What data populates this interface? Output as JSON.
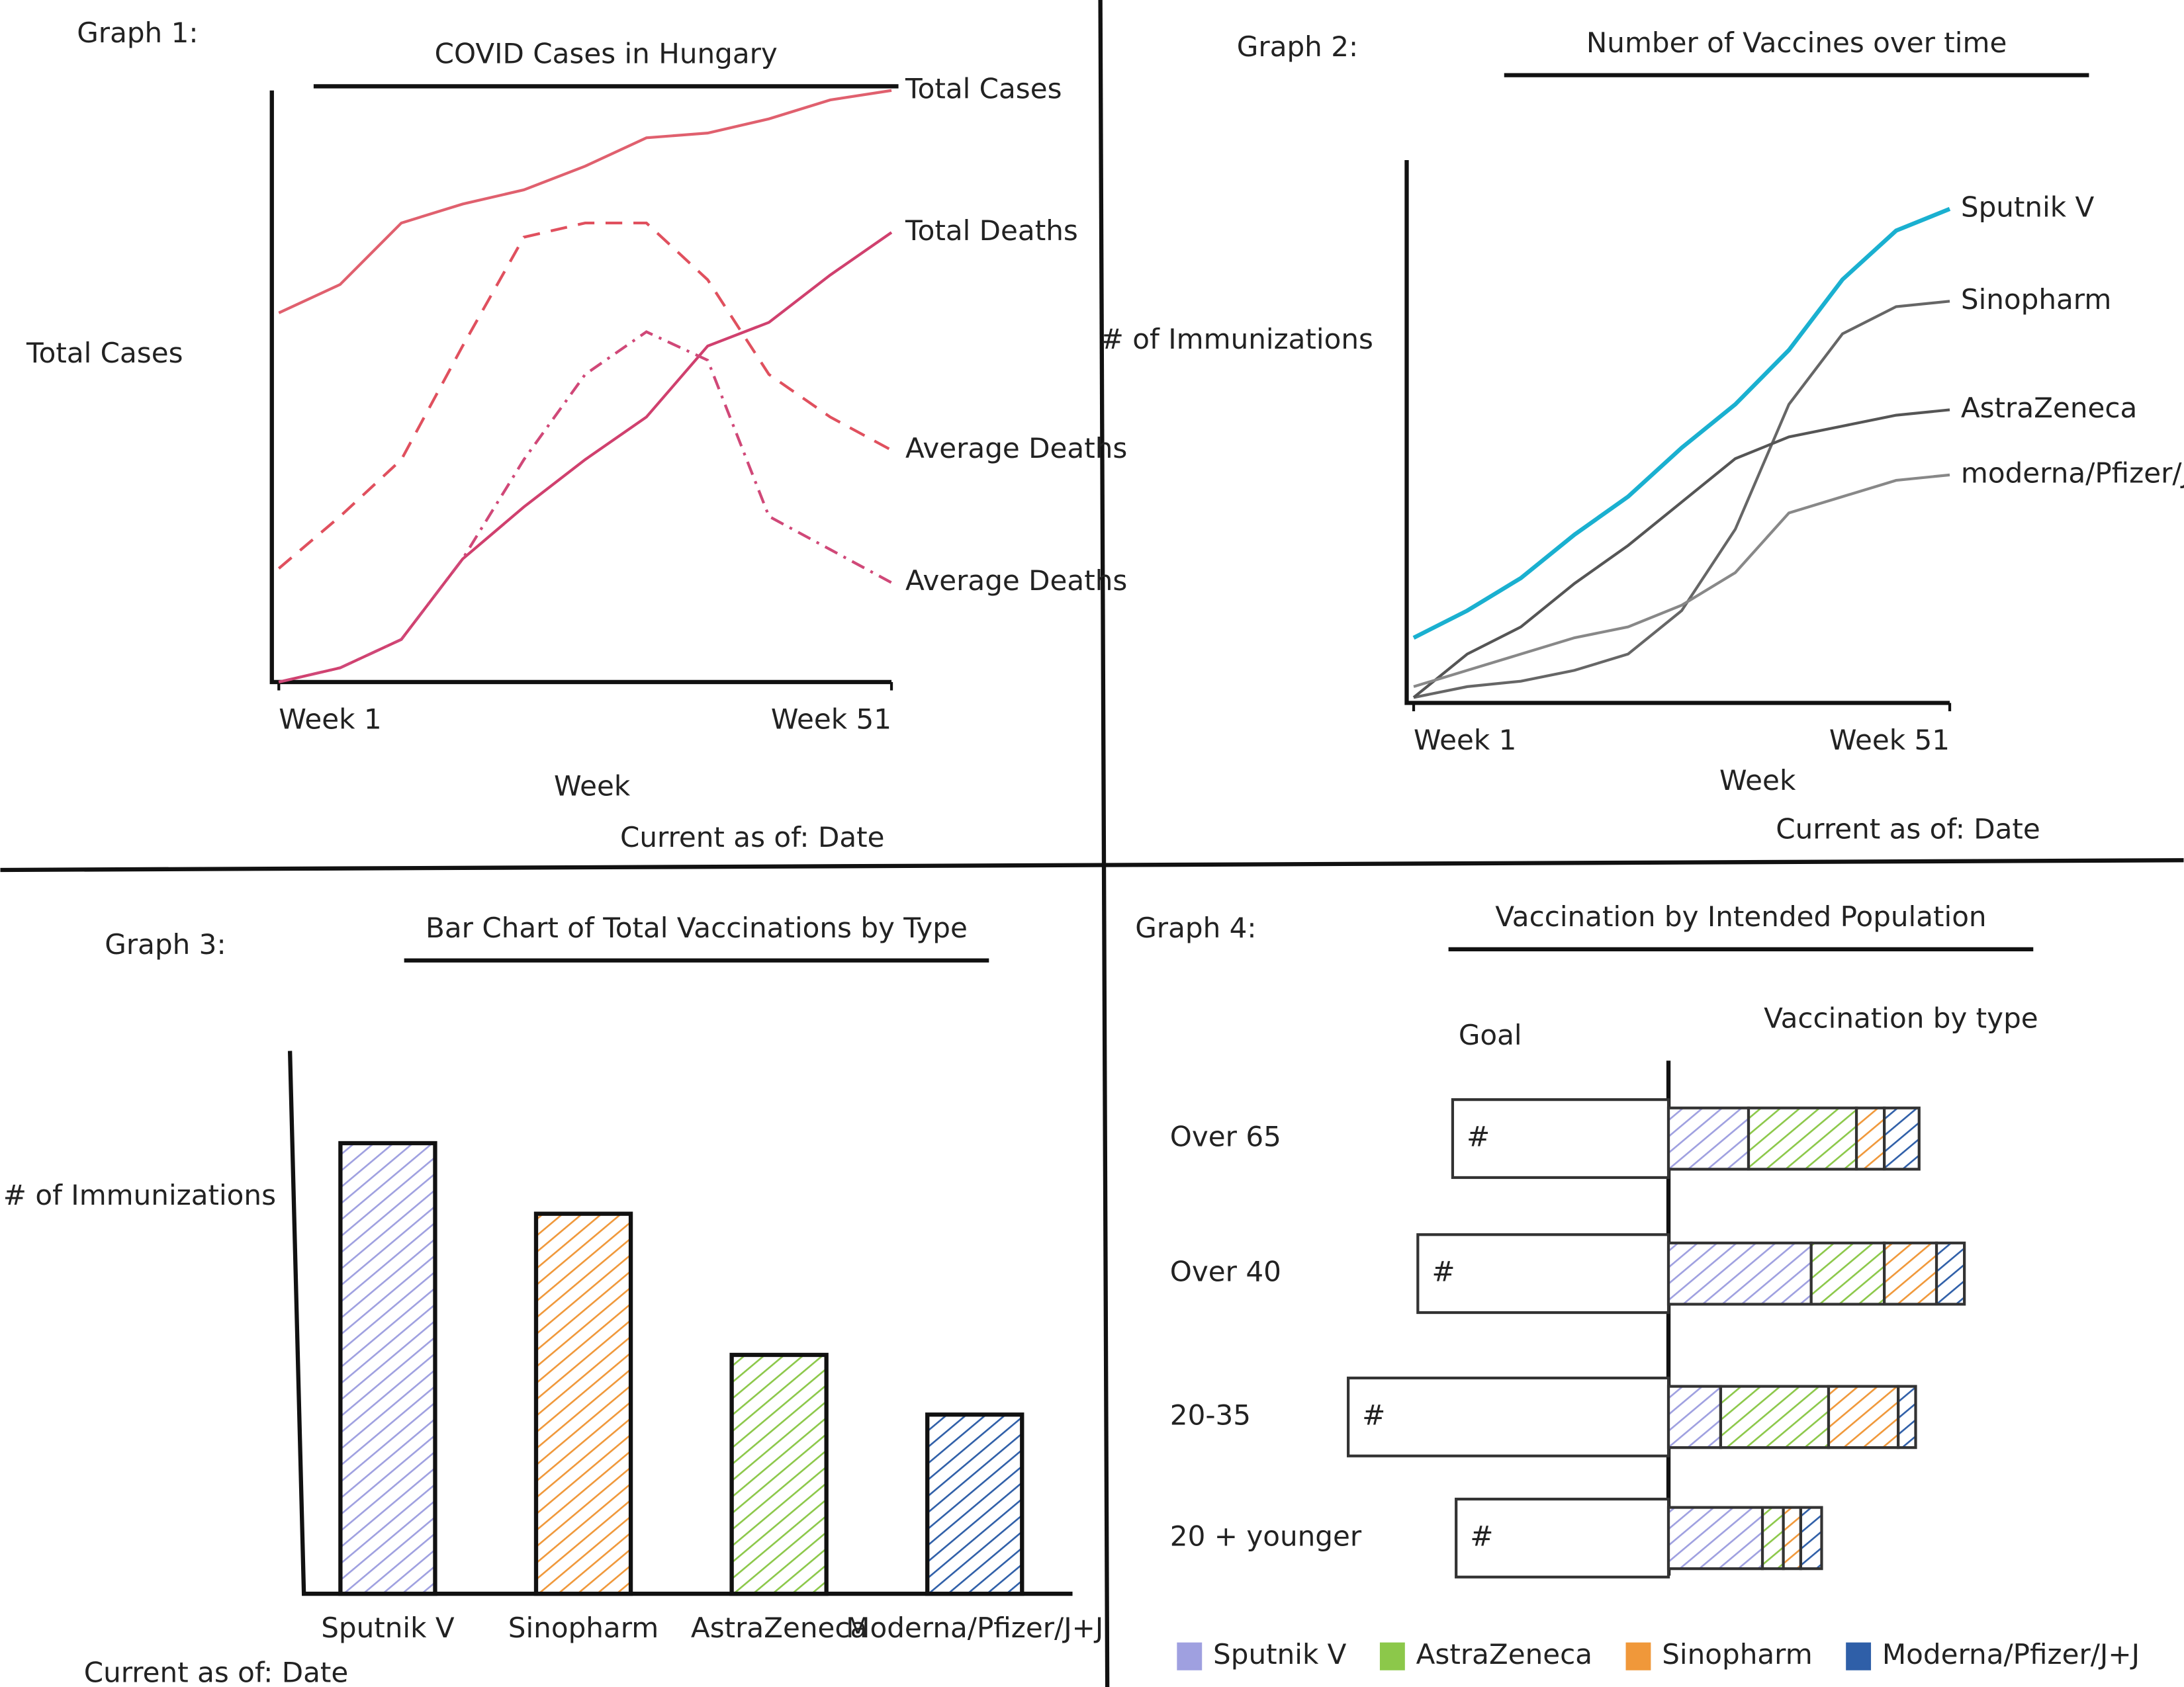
{
  "chart_data": [
    {
      "type": "line",
      "label": "Graph 1:",
      "title": "COVID Cases in Hungary",
      "ylabel": "Total Cases",
      "xlabel": "Week",
      "footnote": "Current as of: Date",
      "x": [
        1,
        6,
        11,
        16,
        21,
        26,
        31,
        36,
        41,
        46,
        51
      ],
      "xlim": [
        1,
        51
      ],
      "xticks": [
        {
          "value": 1,
          "label": "Week 1"
        },
        {
          "value": 51,
          "label": "Week 51"
        }
      ],
      "ylim": [
        0,
        125
      ],
      "series": [
        {
          "name": "Total Cases",
          "color": "#e0606e",
          "dash": "solid",
          "values": [
            78,
            84,
            97,
            101,
            104,
            109,
            115,
            116,
            119,
            123,
            125
          ]
        },
        {
          "name": "Total Deaths",
          "color": "#d0406e",
          "dash": "solid",
          "values": [
            0,
            3,
            9,
            26,
            37,
            47,
            56,
            71,
            76,
            86,
            95
          ]
        },
        {
          "name": "Average Deaths",
          "color": "#e0505e",
          "dash": "dashed",
          "values": [
            24,
            35,
            47,
            71,
            94,
            97,
            97,
            85,
            65,
            56,
            49
          ]
        },
        {
          "name": "Average Deaths",
          "color": "#d04878",
          "dash": "dashdot",
          "values": [
            0,
            3,
            9,
            26,
            47,
            65,
            74,
            68,
            35,
            28,
            21
          ]
        }
      ]
    },
    {
      "type": "line",
      "label": "Graph 2:",
      "title": "Number of Vaccines over time",
      "ylabel": "# of Immunizations",
      "xlabel": "Week",
      "footnote": "Current as of: Date",
      "x": [
        1,
        6,
        11,
        16,
        21,
        26,
        31,
        36,
        41,
        46,
        51
      ],
      "xlim": [
        1,
        51
      ],
      "xticks": [
        {
          "value": 1,
          "label": "Week 1"
        },
        {
          "value": 51,
          "label": "Week 51"
        }
      ],
      "ylim": [
        0,
        100
      ],
      "series": [
        {
          "name": "Sputnik V",
          "color": "#1ab0d0",
          "dash": "solid",
          "values": [
            12,
            17,
            23,
            31,
            38,
            47,
            55,
            65,
            78,
            87,
            91
          ]
        },
        {
          "name": "Sinopharm",
          "color": "#666666",
          "dash": "solid",
          "values": [
            1,
            3,
            4,
            6,
            9,
            17,
            32,
            55,
            68,
            73,
            74
          ]
        },
        {
          "name": "AstraZeneca",
          "color": "#555555",
          "dash": "solid",
          "values": [
            1,
            9,
            14,
            22,
            29,
            37,
            45,
            49,
            51,
            53,
            54
          ]
        },
        {
          "name": "moderna/Pfizer/J+J",
          "color": "#888888",
          "dash": "solid",
          "values": [
            3,
            6,
            9,
            12,
            14,
            18,
            24,
            35,
            38,
            41,
            42
          ]
        }
      ]
    },
    {
      "type": "bar",
      "label": "Graph 3:",
      "title": "Bar Chart of Total Vaccinations by Type",
      "ylabel": "# of Immunizations",
      "footnote": "Current as of: Date",
      "categories": [
        "Sputnik V",
        "Sinopharm",
        "AstraZeneca",
        "Moderna/Pfizer/J+J"
      ],
      "values": [
        83,
        70,
        44,
        33
      ],
      "colors": [
        "#9fa0e0",
        "#f0983a",
        "#8cc84a",
        "#2f5fa8"
      ],
      "ylim": [
        0,
        100
      ]
    },
    {
      "type": "stacked-hbar",
      "label": "Graph 4:",
      "title": "Vaccination by Intended Population",
      "goal_title": "Goal",
      "vaccination_title": "Vaccination by type",
      "goal_marker": "#",
      "categories": [
        "Over 65",
        "Over 40",
        "20-35",
        "20 + younger"
      ],
      "goal": [
        62,
        72,
        92,
        61
      ],
      "xlim": [
        0,
        100
      ],
      "series": [
        {
          "name": "Sputnik V",
          "color": "#9fa0e0",
          "values": [
            23,
            41,
            15,
            27
          ]
        },
        {
          "name": "AstraZeneca",
          "color": "#8cc84a",
          "values": [
            31,
            21,
            31,
            6
          ]
        },
        {
          "name": "Sinopharm",
          "color": "#f0983a",
          "values": [
            8,
            15,
            20,
            5
          ]
        },
        {
          "name": "Moderna/Pfizer/J+J",
          "color": "#2f5fa8",
          "values": [
            10,
            8,
            5,
            6
          ]
        }
      ]
    }
  ]
}
